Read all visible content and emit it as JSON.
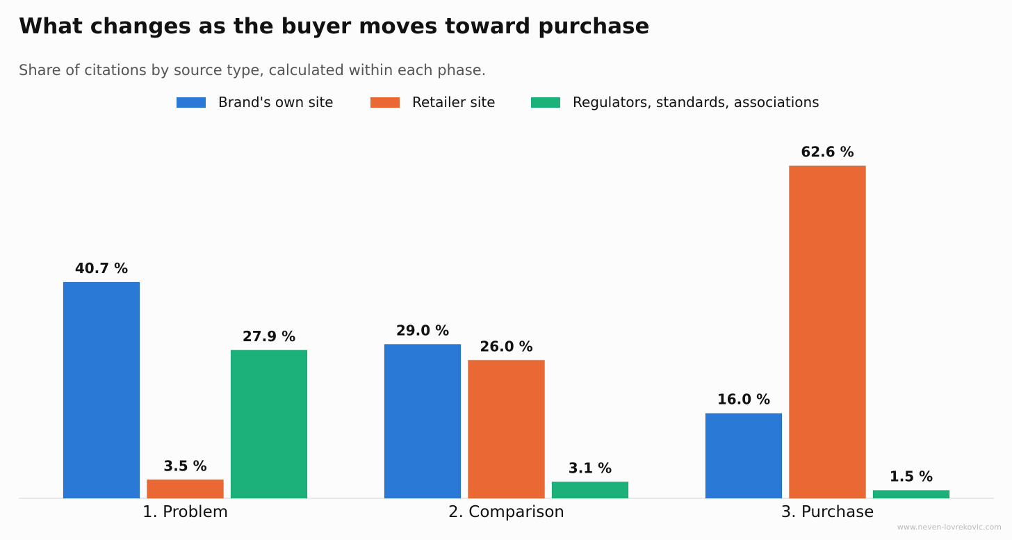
{
  "chart_data": {
    "type": "bar",
    "title": "What changes as the buyer moves toward purchase",
    "subtitle": "Share of citations by source type, calculated within each phase.",
    "categories": [
      "1. Problem",
      "2. Comparison",
      "3. Purchase"
    ],
    "series": [
      {
        "name": "Brand's own site",
        "values": [
          40.7,
          29.0,
          16.0
        ],
        "labels": [
          "40.7 %",
          "29.0 %",
          "16.0 %"
        ],
        "color": "#2b79d6"
      },
      {
        "name": "Retailer site",
        "values": [
          3.5,
          26.0,
          62.6
        ],
        "labels": [
          "3.5 %",
          "26.0 %",
          "62.6 %"
        ],
        "color": "#ea6834"
      },
      {
        "name": "Regulators, standards, associations",
        "values": [
          27.9,
          3.1,
          1.5
        ],
        "labels": [
          "27.9 %",
          "3.1 %",
          "1.5 %"
        ],
        "color": "#1cb07b"
      }
    ],
    "xlabel": "",
    "ylabel": "",
    "ylim": [
      0,
      70
    ],
    "grid": false,
    "legend_position": "top-center",
    "watermark": "www.neven-lovrekovic.com"
  }
}
